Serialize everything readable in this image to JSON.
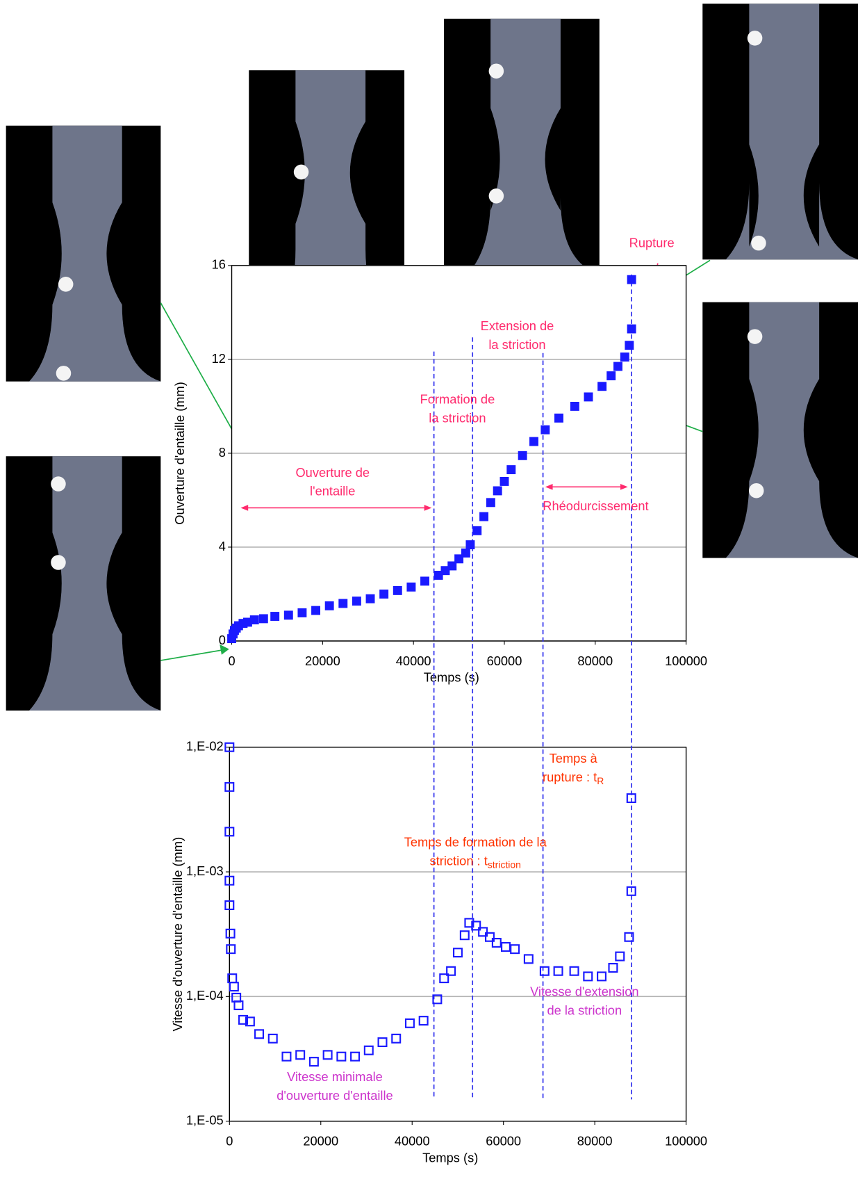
{
  "chart_data": [
    {
      "type": "scatter",
      "x_label": "Temps (s)",
      "y_label": "Ouverture d'entaille (mm)",
      "xlim": [
        0,
        100000
      ],
      "xticks": [
        0,
        20000,
        40000,
        60000,
        80000,
        100000
      ],
      "ylim": [
        0,
        16
      ],
      "yticks": [
        0,
        4,
        8,
        12,
        16
      ],
      "grid": true,
      "series": [
        {
          "color": "#1a1aff",
          "x": [
            0,
            300,
            600,
            1000,
            1500,
            2500,
            3500,
            5000,
            7000,
            9500,
            12500,
            15500,
            18500,
            21500,
            24500,
            27500,
            30500,
            33500,
            36500,
            39500,
            42500,
            45500,
            47000,
            48500,
            50000,
            51500,
            52500,
            54000,
            55500,
            57000,
            58500,
            60000,
            61500,
            64000,
            66500,
            69000,
            72000,
            75500,
            78500,
            81500,
            83500,
            85000,
            86500,
            87500,
            88000,
            88000
          ],
          "values": [
            0.1,
            0.3,
            0.45,
            0.55,
            0.65,
            0.75,
            0.8,
            0.9,
            0.95,
            1.05,
            1.1,
            1.2,
            1.3,
            1.5,
            1.6,
            1.7,
            1.8,
            2.0,
            2.15,
            2.3,
            2.55,
            2.8,
            3.0,
            3.2,
            3.5,
            3.75,
            4.1,
            4.7,
            5.3,
            5.9,
            6.4,
            6.8,
            7.3,
            7.9,
            8.5,
            9.0,
            9.5,
            10.0,
            10.4,
            10.85,
            11.3,
            11.7,
            12.1,
            12.6,
            13.3,
            15.4
          ]
        }
      ],
      "vlines": {
        "x": [
          44500,
          53000,
          68500,
          88000
        ],
        "color": "#3333ee"
      },
      "annotations": [
        {
          "lines": [
            "Rupture"
          ],
          "color": "#ff2a6d"
        },
        {
          "lines": [
            "Extension de",
            "la striction"
          ],
          "color": "#ff2a6d"
        },
        {
          "lines": [
            "Formation de",
            "la striction"
          ],
          "color": "#ff2a6d"
        },
        {
          "lines": [
            "Ouverture de",
            "l'entaille"
          ],
          "color": "#ff2a6d"
        },
        {
          "lines": [
            "Rhéodurcissement"
          ],
          "color": "#ff2a6d"
        }
      ]
    },
    {
      "type": "scatter",
      "x_label": "Temps (s)",
      "y_label": "Vitesse d'ouverture d'entaille (mm)",
      "xlim": [
        0,
        100000
      ],
      "xticks": [
        0,
        20000,
        40000,
        60000,
        80000,
        100000
      ],
      "ylim": [
        1e-05,
        0.01
      ],
      "log_y": true,
      "yticks": [
        {
          "value": 1e-05,
          "label": "1,E-05"
        },
        {
          "value": 0.0001,
          "label": "1,E-04"
        },
        {
          "value": 0.001,
          "label": "1,E-03"
        },
        {
          "value": 0.01,
          "label": "1,E-02"
        }
      ],
      "grid": true,
      "series": [
        {
          "color": "#1a1aff",
          "x": [
            0,
            0,
            0,
            0,
            0,
            200,
            300,
            600,
            1000,
            1500,
            2000,
            3000,
            4500,
            6500,
            9500,
            12500,
            15500,
            18500,
            21500,
            24500,
            27500,
            30500,
            33500,
            36500,
            39500,
            42500,
            45500,
            47000,
            48500,
            50000,
            51500,
            52500,
            54000,
            55500,
            57000,
            58500,
            60500,
            62500,
            65500,
            69000,
            72000,
            75500,
            78500,
            81500,
            84000,
            85500,
            87500,
            88000,
            88000
          ],
          "values": [
            0.01,
            0.0048,
            0.0021,
            0.00085,
            0.00054,
            0.00032,
            0.00024,
            0.00014,
            0.00012,
            9.8e-05,
            8.5e-05,
            6.5e-05,
            6.3e-05,
            5e-05,
            4.6e-05,
            3.3e-05,
            3.4e-05,
            3e-05,
            3.4e-05,
            3.3e-05,
            3.3e-05,
            3.7e-05,
            4.3e-05,
            4.6e-05,
            6.1e-05,
            6.4e-05,
            9.5e-05,
            0.00014,
            0.00016,
            0.000225,
            0.00031,
            0.00039,
            0.00037,
            0.00033,
            0.0003,
            0.00027,
            0.00025,
            0.00024,
            0.0002,
            0.00016,
            0.00016,
            0.00016,
            0.000145,
            0.000145,
            0.00017,
            0.00021,
            0.0003,
            0.0007,
            0.0039
          ]
        }
      ],
      "annotations": [
        {
          "lines": [
            "Temps à",
            "rupture : t"
          ],
          "subscript": "R",
          "color": "#ff3300"
        },
        {
          "lines": [
            "Temps de formation de la",
            "striction : t"
          ],
          "subscript": "striction",
          "color": "#ff3300"
        },
        {
          "lines": [
            "Vitesse d'extension",
            "de la striction"
          ],
          "color": "#cc33cc"
        },
        {
          "lines": [
            "Vitesse minimale",
            "d'ouverture d'entaille"
          ],
          "color": "#cc33cc"
        }
      ]
    }
  ]
}
